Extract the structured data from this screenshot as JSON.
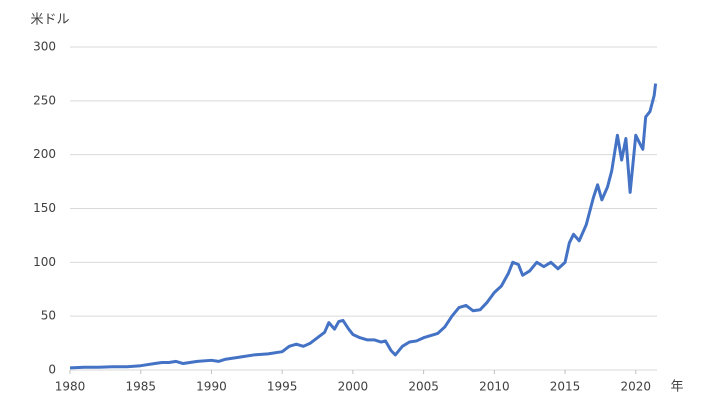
{
  "chart_data": {
    "type": "line",
    "y_label": "米ドル",
    "x_label": "年",
    "xlim": [
      1980,
      2021.5
    ],
    "xticks": [
      1980,
      1985,
      1990,
      1995,
      2000,
      2005,
      2010,
      2015,
      2020
    ],
    "ylim": [
      0,
      300
    ],
    "yticks": [
      0,
      50,
      100,
      150,
      200,
      250,
      300
    ],
    "grid": true,
    "series": [
      {
        "color": "#4472c4",
        "x": [
          1980,
          1981,
          1982,
          1983,
          1984,
          1985,
          1986,
          1986.5,
          1987,
          1987.5,
          1988,
          1989,
          1990,
          1990.5,
          1991,
          1992,
          1993,
          1994,
          1995,
          1995.5,
          1996,
          1996.5,
          1997,
          1997.5,
          1998,
          1998.3,
          1998.7,
          1999,
          1999.3,
          1999.7,
          2000,
          2000.5,
          2001,
          2001.5,
          2002,
          2002.3,
          2002.7,
          2003,
          2003.5,
          2004,
          2004.5,
          2005,
          2005.5,
          2006,
          2006.5,
          2007,
          2007.5,
          2008,
          2008.5,
          2009,
          2009.5,
          2010,
          2010.5,
          2011,
          2011.3,
          2011.7,
          2012,
          2012.5,
          2013,
          2013.5,
          2014,
          2014.5,
          2015,
          2015.3,
          2015.6,
          2016,
          2016.5,
          2017,
          2017.3,
          2017.6,
          2018,
          2018.3,
          2018.7,
          2019,
          2019.3,
          2019.6,
          2020,
          2020.3,
          2020.5,
          2020.7,
          2021,
          2021.3,
          2021.4
        ],
        "values": [
          2,
          2.5,
          2.5,
          3,
          3,
          4,
          6,
          7,
          7,
          8,
          6,
          8,
          9,
          8,
          10,
          12,
          14,
          15,
          17,
          22,
          24,
          22,
          25,
          30,
          35,
          44,
          38,
          45,
          46,
          38,
          33,
          30,
          28,
          28,
          26,
          27,
          18,
          14,
          22,
          26,
          27,
          30,
          32,
          34,
          40,
          50,
          58,
          60,
          55,
          56,
          63,
          72,
          78,
          90,
          100,
          98,
          88,
          92,
          100,
          96,
          100,
          94,
          100,
          118,
          126,
          120,
          135,
          160,
          172,
          158,
          170,
          185,
          218,
          195,
          215,
          165,
          218,
          210,
          205,
          235,
          240,
          255,
          266
        ]
      }
    ]
  }
}
